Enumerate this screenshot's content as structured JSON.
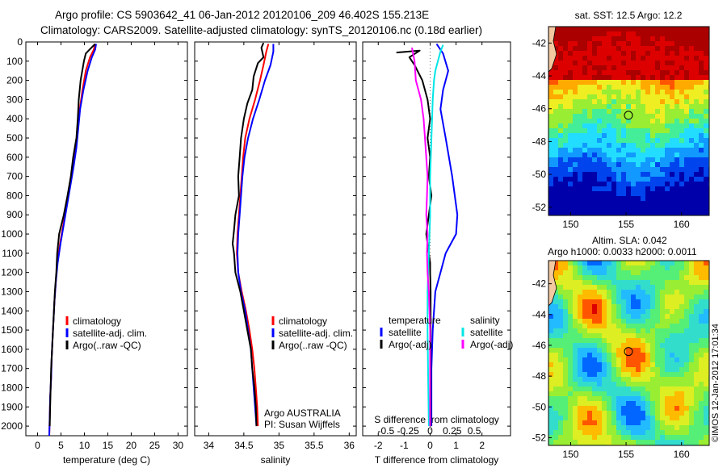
{
  "header": {
    "title_line1": "Argo profile: CS 5903642_41 06-Jan-2012 20120106_209 46.402S 155.213E",
    "title_line2": "Climatology: CARS2009. Satellite-adjusted climatology: synTS_20120106.nc (0.18d earlier)"
  },
  "depth_axis": {
    "range": [
      0,
      2050
    ],
    "ticks": [
      0,
      100,
      200,
      300,
      400,
      500,
      600,
      700,
      800,
      900,
      1000,
      1100,
      1200,
      1300,
      1400,
      1500,
      1600,
      1700,
      1800,
      1900,
      2000
    ]
  },
  "chart_data": [
    {
      "type": "line",
      "id": "temperature",
      "xlabel": "temperature (deg C)",
      "xlim": [
        -2.5,
        32
      ],
      "xticks": [
        0,
        5,
        10,
        15,
        20,
        25,
        30
      ],
      "ylim": [
        0,
        2050
      ],
      "legend": {
        "placement": "lower-center",
        "entries": [
          "climatology",
          "satellite-adj. clim.",
          "Argo(..raw -QC)"
        ]
      },
      "series": [
        {
          "name": "climatology",
          "color": "#ff0000",
          "points": [
            [
              12.3,
              10
            ],
            [
              12.0,
              40
            ],
            [
              11.2,
              80
            ],
            [
              10.3,
              150
            ],
            [
              9.6,
              250
            ],
            [
              9.0,
              350
            ],
            [
              8.6,
              450
            ],
            [
              8.2,
              550
            ],
            [
              7.6,
              650
            ],
            [
              6.9,
              750
            ],
            [
              6.2,
              850
            ],
            [
              5.5,
              950
            ],
            [
              4.8,
              1050
            ],
            [
              4.2,
              1150
            ],
            [
              3.9,
              1250
            ],
            [
              3.6,
              1350
            ],
            [
              3.4,
              1450
            ],
            [
              3.2,
              1550
            ],
            [
              3.0,
              1650
            ],
            [
              2.9,
              1750
            ],
            [
              2.7,
              1850
            ],
            [
              2.6,
              1950
            ],
            [
              2.5,
              2050
            ]
          ]
        },
        {
          "name": "satellite-adj. clim.",
          "color": "#0000ff",
          "points": [
            [
              12.5,
              10
            ],
            [
              12.3,
              40
            ],
            [
              11.6,
              80
            ],
            [
              10.7,
              150
            ],
            [
              9.8,
              250
            ],
            [
              9.1,
              350
            ],
            [
              8.7,
              450
            ],
            [
              8.3,
              550
            ],
            [
              7.7,
              650
            ],
            [
              7.0,
              750
            ],
            [
              6.3,
              850
            ],
            [
              5.6,
              950
            ],
            [
              4.9,
              1050
            ],
            [
              4.3,
              1150
            ],
            [
              3.9,
              1250
            ],
            [
              3.6,
              1350
            ],
            [
              3.4,
              1450
            ],
            [
              3.2,
              1550
            ],
            [
              3.0,
              1650
            ],
            [
              2.9,
              1750
            ],
            [
              2.7,
              1850
            ],
            [
              2.6,
              1950
            ],
            [
              2.5,
              2050
            ]
          ]
        },
        {
          "name": "Argo(..raw -QC)",
          "color": "#000000",
          "points": [
            [
              12.3,
              10
            ],
            [
              11.5,
              30
            ],
            [
              10.3,
              60
            ],
            [
              9.9,
              100
            ],
            [
              9.2,
              200
            ],
            [
              8.8,
              300
            ],
            [
              8.6,
              400
            ],
            [
              8.3,
              500
            ],
            [
              7.6,
              600
            ],
            [
              7.1,
              700
            ],
            [
              6.4,
              800
            ],
            [
              5.6,
              900
            ],
            [
              5.1,
              950
            ],
            [
              4.6,
              1000
            ],
            [
              4.2,
              1100
            ],
            [
              4.0,
              1200
            ],
            [
              3.7,
              1300
            ],
            [
              3.5,
              1400
            ],
            [
              3.3,
              1500
            ],
            [
              3.1,
              1600
            ],
            [
              2.9,
              1700
            ],
            [
              2.8,
              1800
            ],
            [
              2.7,
              1900
            ],
            [
              2.6,
              2000
            ]
          ]
        }
      ]
    },
    {
      "type": "line",
      "id": "salinity",
      "xlabel": "salinity",
      "xlim": [
        33.8,
        36.1
      ],
      "xticks": [
        34,
        34.5,
        35,
        35.5,
        36
      ],
      "ylim": [
        0,
        2050
      ],
      "legend": {
        "placement": "lower-right",
        "entries": [
          "climatology",
          "satellite-adj. clim.",
          "Argo(..raw -QC)"
        ]
      },
      "annotations": [
        "Argo AUSTRALIA",
        "PI: Susan Wijffels"
      ],
      "series": [
        {
          "name": "climatology",
          "color": "#ff0000",
          "points": [
            [
              34.85,
              10
            ],
            [
              34.82,
              50
            ],
            [
              34.78,
              120
            ],
            [
              34.73,
              200
            ],
            [
              34.66,
              300
            ],
            [
              34.58,
              400
            ],
            [
              34.52,
              500
            ],
            [
              34.49,
              600
            ],
            [
              34.47,
              700
            ],
            [
              34.45,
              800
            ],
            [
              34.43,
              900
            ],
            [
              34.41,
              1000
            ],
            [
              34.4,
              1100
            ],
            [
              34.42,
              1200
            ],
            [
              34.47,
              1300
            ],
            [
              34.53,
              1400
            ],
            [
              34.58,
              1500
            ],
            [
              34.62,
              1600
            ],
            [
              34.65,
              1700
            ],
            [
              34.67,
              1800
            ],
            [
              34.69,
              1900
            ],
            [
              34.7,
              2000
            ]
          ]
        },
        {
          "name": "satellite-adj. clim.",
          "color": "#0000ff",
          "points": [
            [
              34.92,
              10
            ],
            [
              34.92,
              50
            ],
            [
              34.88,
              120
            ],
            [
              34.8,
              200
            ],
            [
              34.72,
              300
            ],
            [
              34.63,
              400
            ],
            [
              34.56,
              500
            ],
            [
              34.51,
              600
            ],
            [
              34.48,
              700
            ],
            [
              34.46,
              800
            ],
            [
              34.44,
              900
            ],
            [
              34.42,
              1000
            ],
            [
              34.41,
              1100
            ],
            [
              34.42,
              1200
            ],
            [
              34.46,
              1300
            ],
            [
              34.52,
              1400
            ],
            [
              34.56,
              1500
            ],
            [
              34.6,
              1600
            ],
            [
              34.62,
              1700
            ],
            [
              34.64,
              1800
            ],
            [
              34.66,
              1900
            ],
            [
              34.68,
              2000
            ]
          ]
        },
        {
          "name": "Argo(..raw -QC)",
          "color": "#000000",
          "points": [
            [
              34.78,
              5
            ],
            [
              34.75,
              30
            ],
            [
              34.78,
              80
            ],
            [
              34.7,
              110
            ],
            [
              34.64,
              180
            ],
            [
              34.62,
              250
            ],
            [
              34.55,
              320
            ],
            [
              34.5,
              400
            ],
            [
              34.46,
              500
            ],
            [
              34.44,
              600
            ],
            [
              34.42,
              700
            ],
            [
              34.43,
              800
            ],
            [
              34.38,
              900
            ],
            [
              34.36,
              980
            ],
            [
              34.34,
              1050
            ],
            [
              34.36,
              1100
            ],
            [
              34.38,
              1200
            ],
            [
              34.45,
              1300
            ],
            [
              34.5,
              1400
            ],
            [
              34.55,
              1500
            ],
            [
              34.6,
              1600
            ],
            [
              34.62,
              1700
            ],
            [
              34.65,
              1800
            ],
            [
              34.67,
              1900
            ],
            [
              34.68,
              2000
            ]
          ]
        }
      ]
    },
    {
      "type": "line",
      "id": "differences",
      "xlabel": "T difference from climatology",
      "xlabel_top": "S difference from climatology",
      "xlim": [
        -2.6,
        3.1
      ],
      "xticks": [
        -2,
        -1,
        0,
        1,
        2
      ],
      "xticks_top": [
        {
          "label": "-0.5",
          "x": -1.7
        },
        {
          "label": "-0.25",
          "x": -0.85
        },
        {
          "label": "0",
          "x": 0
        },
        {
          "label": "0.25",
          "x": 0.85
        },
        {
          "label": "0.5",
          "x": 1.7
        }
      ],
      "ylim": [
        0,
        2050
      ],
      "legend": {
        "placement": "lower-center",
        "temperature_heading": "temperature",
        "salinity_heading": "salinity",
        "entries": [
          {
            "name": "satellite",
            "color": "#0000ff"
          },
          {
            "name": "Argo(-adj)",
            "color": "#000000"
          },
          {
            "name": "satellite",
            "color": "#00e5e5"
          },
          {
            "name": "Argo(-adj)",
            "color": "#ff00ff"
          }
        ]
      },
      "series": [
        {
          "name": "satellite",
          "color": "#0000ff",
          "points": [
            [
              0.25,
              10
            ],
            [
              0.5,
              60
            ],
            [
              0.7,
              150
            ],
            [
              0.5,
              250
            ],
            [
              0.4,
              350
            ],
            [
              0.6,
              500
            ],
            [
              0.85,
              700
            ],
            [
              1.05,
              900
            ],
            [
              1.0,
              1000
            ],
            [
              0.6,
              1100
            ],
            [
              0.4,
              1200
            ],
            [
              0.2,
              1300
            ],
            [
              0.1,
              1500
            ],
            [
              0.05,
              1700
            ],
            [
              0.05,
              2000
            ]
          ]
        },
        {
          "name": "Argo(-adj)",
          "color": "#000000",
          "points": [
            [
              -1.3,
              55
            ],
            [
              -0.4,
              45
            ],
            [
              -0.8,
              80
            ],
            [
              -0.6,
              120
            ],
            [
              -0.3,
              200
            ],
            [
              -0.1,
              300
            ],
            [
              0.0,
              400
            ],
            [
              -0.1,
              500
            ],
            [
              0.0,
              600
            ],
            [
              -0.05,
              700
            ],
            [
              0.05,
              800
            ],
            [
              -0.05,
              900
            ],
            [
              -0.15,
              1000
            ],
            [
              -0.1,
              1050
            ],
            [
              -0.05,
              1100
            ],
            [
              0.0,
              1150
            ],
            [
              0.0,
              1200
            ],
            [
              0.02,
              1300
            ],
            [
              0.02,
              1500
            ],
            [
              0.02,
              1700
            ],
            [
              0.02,
              2000
            ]
          ]
        },
        {
          "name": "satellite",
          "color": "#00e5e5",
          "points": [
            [
              0.5,
              15
            ],
            [
              0.4,
              50
            ],
            [
              0.3,
              100
            ],
            [
              0.2,
              150
            ],
            [
              0.15,
              200
            ],
            [
              0.1,
              300
            ],
            [
              0.05,
              500
            ],
            [
              0.0,
              700
            ],
            [
              0.0,
              900
            ],
            [
              -0.05,
              1100
            ],
            [
              -0.1,
              1300
            ],
            [
              -0.1,
              1500
            ],
            [
              -0.08,
              1700
            ],
            [
              -0.05,
              2000
            ]
          ]
        },
        {
          "name": "Argo(-adj)",
          "color": "#ff00ff",
          "points": [
            [
              -0.7,
              30
            ],
            [
              -0.6,
              100
            ],
            [
              -0.55,
              200
            ],
            [
              -0.35,
              300
            ],
            [
              -0.25,
              400
            ],
            [
              -0.2,
              500
            ],
            [
              -0.15,
              600
            ],
            [
              -0.1,
              700
            ],
            [
              -0.12,
              800
            ],
            [
              -0.15,
              900
            ],
            [
              -0.1,
              1000
            ],
            [
              -0.12,
              1100
            ],
            [
              -0.1,
              1200
            ],
            [
              -0.05,
              1300
            ],
            [
              0.0,
              1500
            ],
            [
              0.0,
              1700
            ],
            [
              0.0,
              2000
            ]
          ]
        }
      ]
    },
    {
      "type": "heatmap",
      "id": "sst-map",
      "title": "sat. SST: 12.5 Argo: 12.2",
      "xlim": [
        148,
        162.5
      ],
      "ylim": [
        -52.5,
        -41
      ],
      "xticks": [
        150,
        155,
        160
      ],
      "yticks": [
        -42,
        -44,
        -46,
        -48,
        -50,
        -52
      ],
      "marker": {
        "lon": 155.213,
        "lat": -46.402
      },
      "colors": [
        "#0000aa",
        "#0044ee",
        "#1199ff",
        "#22ddff",
        "#44ee99",
        "#99ee33",
        "#eeee22",
        "#ffaa00",
        "#ff5500",
        "#dd0000",
        "#aa0000"
      ]
    },
    {
      "type": "heatmap",
      "id": "sla-map",
      "title": "Altim. SLA: 0.042",
      "subtitle": "Argo h1000: 0.0033 h2000: 0.0011",
      "xlim": [
        148,
        162.5
      ],
      "ylim": [
        -52.5,
        -40.5
      ],
      "xticks": [
        150,
        155,
        160
      ],
      "yticks": [
        -42,
        -44,
        -46,
        -48,
        -50,
        -52
      ],
      "marker": {
        "lon": 155.213,
        "lat": -46.402
      },
      "colors": [
        "#0000cc",
        "#0066ff",
        "#22bbff",
        "#33ddcc",
        "#55ee77",
        "#99ee33",
        "#ddee22",
        "#ffbb00",
        "#ff5500",
        "#dd0000"
      ]
    }
  ],
  "credit": "©IMOS 12-Jan-2012 17:01:34"
}
